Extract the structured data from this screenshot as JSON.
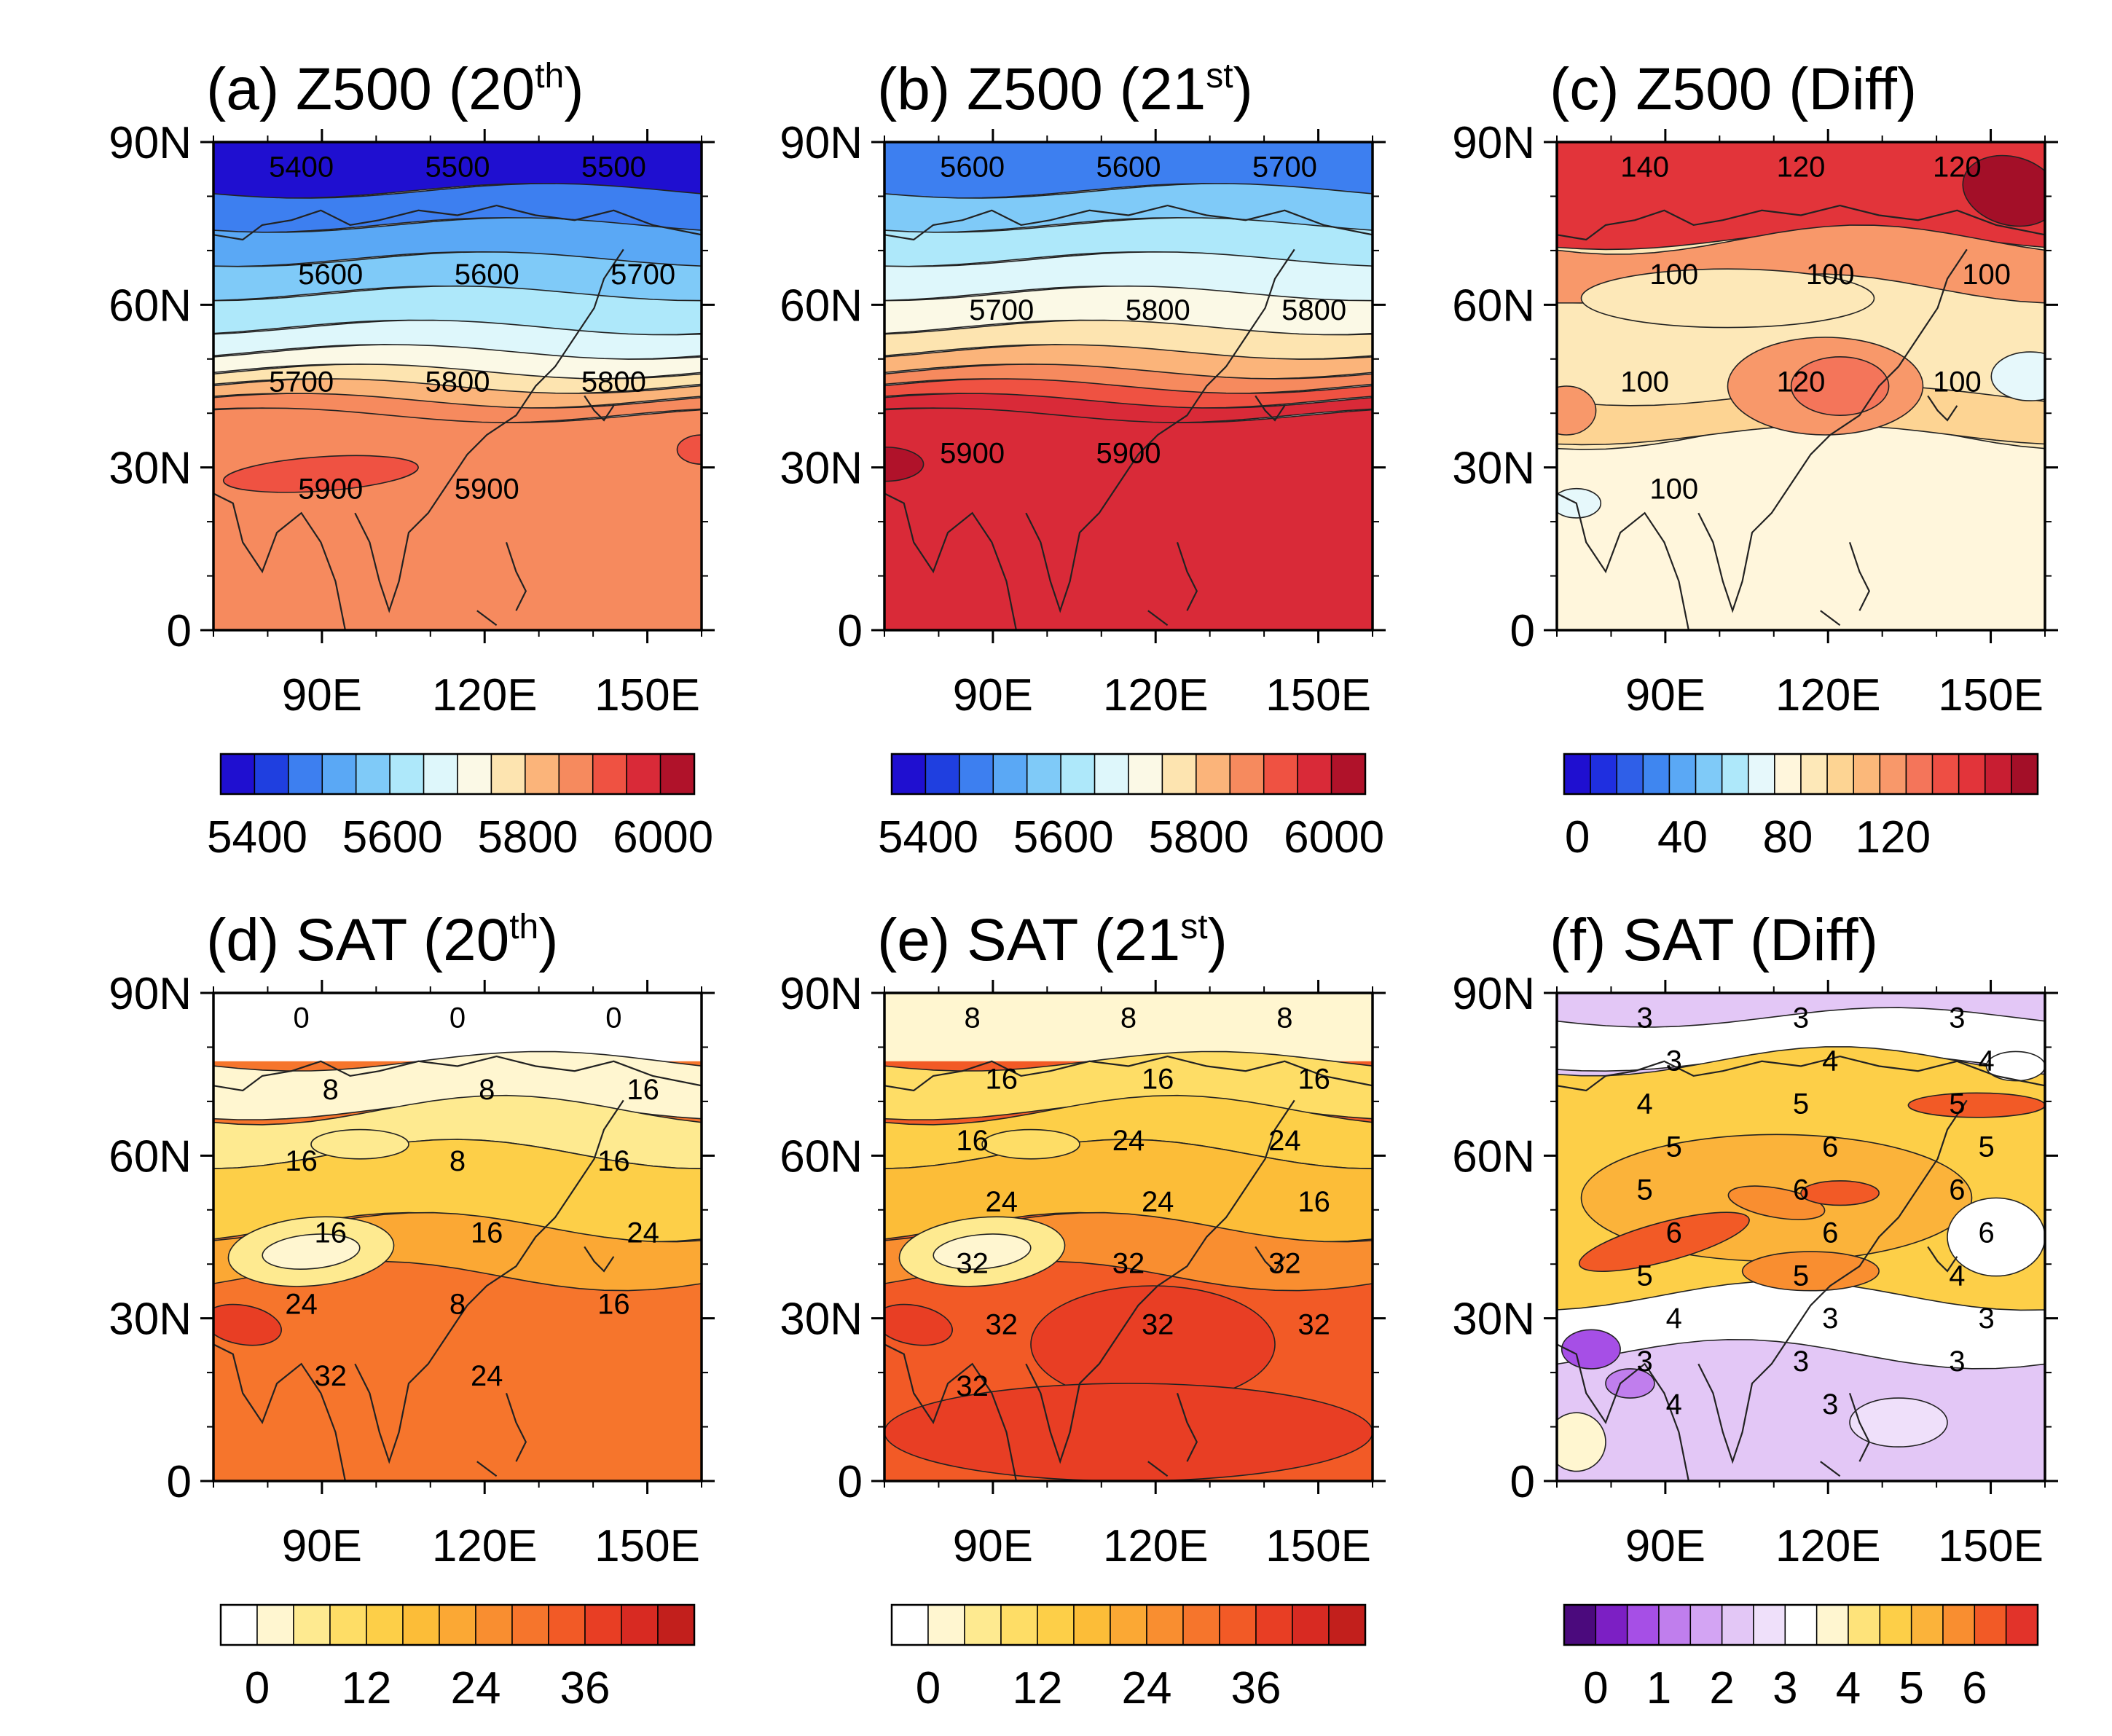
{
  "figure": {
    "panels": [
      {
        "id": "a",
        "title_pre": "(a) Z500 (20",
        "title_sup": "th",
        "title_post": ")",
        "kind": "z500",
        "period": "20th",
        "contour_labels": [
          "5400",
          "5500",
          "5500",
          "5600",
          "5600",
          "5700",
          "5700",
          "5800",
          "5800",
          "5900",
          "5900"
        ],
        "colorbar": "z500"
      },
      {
        "id": "b",
        "title_pre": "(b) Z500 (21",
        "title_sup": "st",
        "title_post": ")",
        "kind": "z500",
        "period": "21st",
        "contour_labels": [
          "5600",
          "5600",
          "5700",
          "5700",
          "5800",
          "5800",
          "5900",
          "5900"
        ],
        "colorbar": "z500"
      },
      {
        "id": "c",
        "title_pre": "(c) Z500 (Diff)",
        "title_sup": "",
        "title_post": "",
        "kind": "z500diff",
        "period": "Diff",
        "contour_labels": [
          "140",
          "120",
          "120",
          "100",
          "100",
          "100",
          "100",
          "120",
          "100",
          "100"
        ],
        "colorbar": "z500diff"
      },
      {
        "id": "d",
        "title_pre": "(d) SAT (20",
        "title_sup": "th",
        "title_post": ")",
        "kind": "sat",
        "period": "20th",
        "contour_labels": [
          "0",
          "0",
          "0",
          "8",
          "8",
          "16",
          "16",
          "8",
          "16",
          "16",
          "16",
          "24",
          "24",
          "8",
          "16",
          "32",
          "24"
        ],
        "colorbar": "sat"
      },
      {
        "id": "e",
        "title_pre": "(e) SAT (21",
        "title_sup": "st",
        "title_post": ")",
        "kind": "sat",
        "period": "21st",
        "contour_labels": [
          "8",
          "8",
          "8",
          "16",
          "16",
          "16",
          "16",
          "24",
          "24",
          "24",
          "24",
          "16",
          "32",
          "32",
          "32",
          "32",
          "32",
          "32",
          "32"
        ],
        "colorbar": "sat"
      },
      {
        "id": "f",
        "title_pre": "(f) SAT (Diff)",
        "title_sup": "",
        "title_post": "",
        "kind": "satdiff",
        "period": "Diff",
        "contour_labels": [
          "3",
          "3",
          "3",
          "3",
          "4",
          "4",
          "4",
          "5",
          "5",
          "5",
          "6",
          "5",
          "5",
          "6",
          "6",
          "6",
          "6",
          "6",
          "5",
          "5",
          "4",
          "4",
          "3",
          "3",
          "3",
          "3",
          "3",
          "4",
          "3"
        ],
        "colorbar": "satdiff"
      }
    ],
    "axes": {
      "y_ticks": [
        "90N",
        "60N",
        "30N",
        "0"
      ],
      "x_ticks": [
        "90E",
        "120E",
        "150E"
      ],
      "lat_range": [
        0,
        90
      ],
      "lon_range": [
        70,
        160
      ]
    },
    "colorbars": {
      "z500": {
        "labels": [
          "5400",
          "5600",
          "5800",
          "6000"
        ],
        "colors": [
          "#1f0fd0",
          "#1f3fe0",
          "#3d7ff0",
          "#5aa8f5",
          "#7fcaf8",
          "#aee8fa",
          "#def7fb",
          "#fbf9e6",
          "#fde4b0",
          "#fbb47a",
          "#f68a5e",
          "#ef5242",
          "#d92a38",
          "#b0122a"
        ]
      },
      "z500diff": {
        "labels": [
          "0",
          "40",
          "80",
          "120"
        ],
        "colors": [
          "#1f0fd0",
          "#1f2fe0",
          "#2f5fe8",
          "#3f86f0",
          "#5aa8f5",
          "#7fcaf8",
          "#aee8fa",
          "#e6f8fb",
          "#fff6dc",
          "#fde8b8",
          "#fdd493",
          "#fbb87a",
          "#f8986a",
          "#f4755a",
          "#ee4e44",
          "#e2343a",
          "#c81e32",
          "#a30f28"
        ]
      },
      "sat": {
        "labels": [
          "0",
          "12",
          "24",
          "36"
        ],
        "colors": [
          "#ffffff",
          "#fff6d0",
          "#feea90",
          "#fedd66",
          "#fdcf48",
          "#fcbd38",
          "#fba834",
          "#f98e30",
          "#f6752c",
          "#f25a26",
          "#e83e24",
          "#d82a22",
          "#c21f1c"
        ]
      },
      "satdiff": {
        "labels": [
          "0",
          "1",
          "2",
          "3",
          "4",
          "5",
          "6"
        ],
        "colors": [
          "#4b0a7d",
          "#7c1fc4",
          "#a64fe6",
          "#c07eed",
          "#d3a4f3",
          "#e3c7f6",
          "#efe0fa",
          "#ffffff",
          "#fff6d0",
          "#fee37a",
          "#fdcf48",
          "#fbb33a",
          "#f98e30",
          "#f25a26",
          "#e2332a"
        ]
      }
    }
  }
}
